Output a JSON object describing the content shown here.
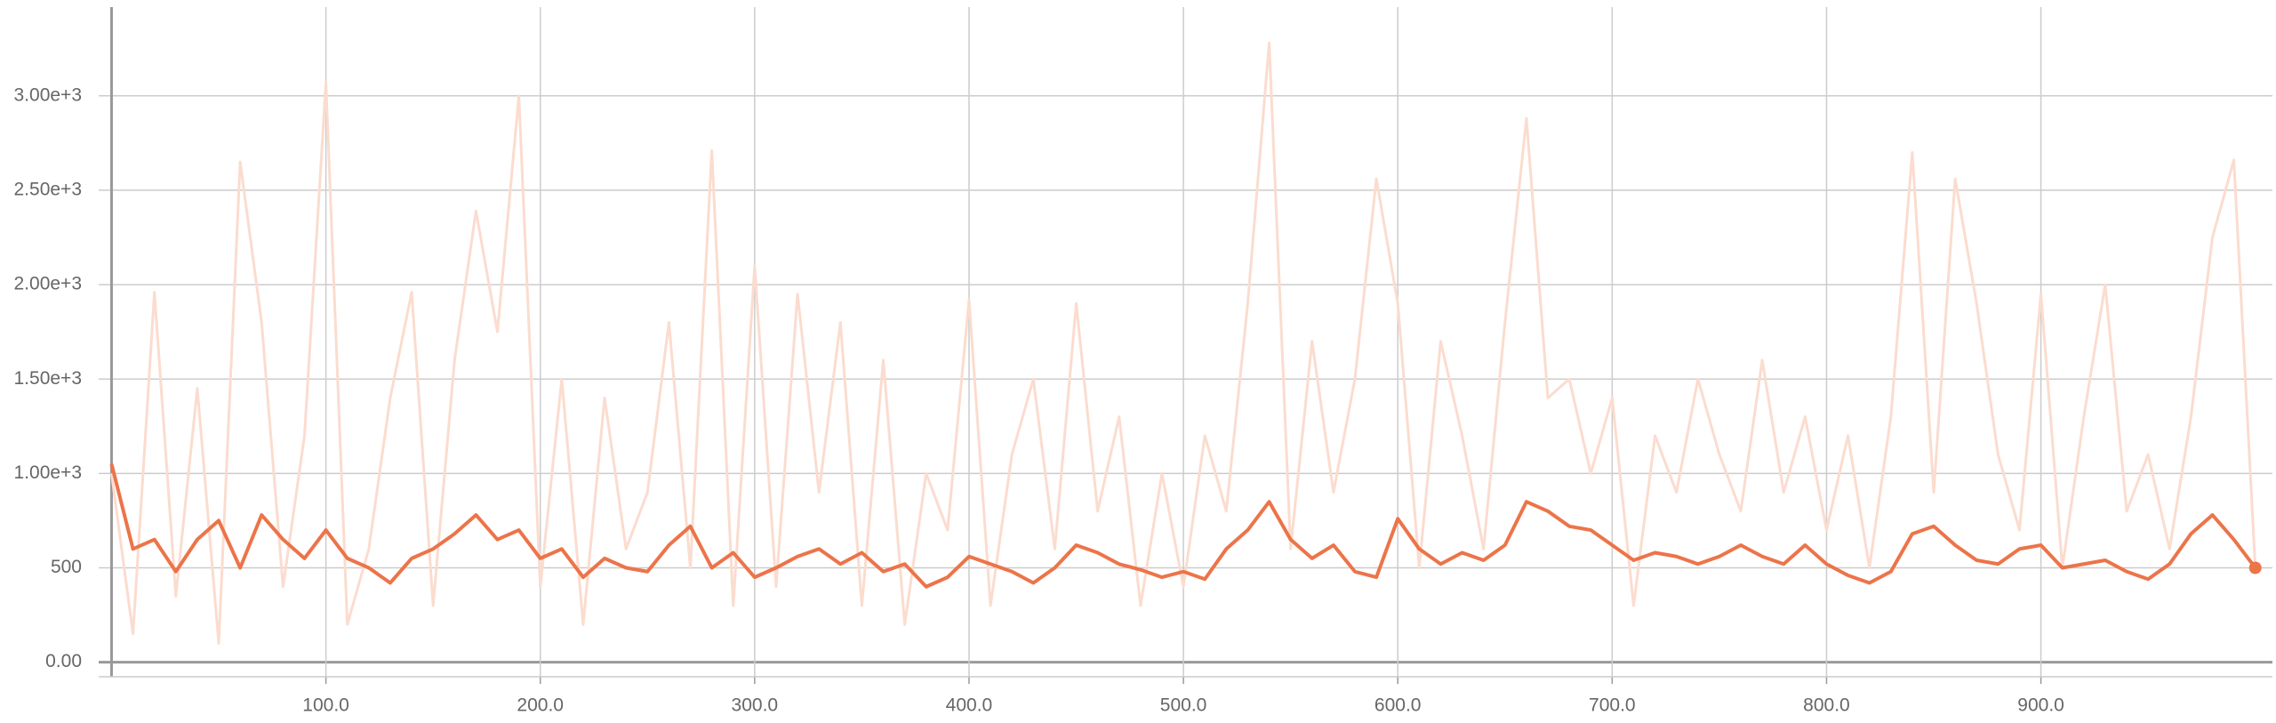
{
  "chart_data": {
    "type": "line",
    "x": [
      0,
      10,
      20,
      30,
      40,
      50,
      60,
      70,
      80,
      90,
      100,
      110,
      120,
      130,
      140,
      150,
      160,
      170,
      180,
      190,
      200,
      210,
      220,
      230,
      240,
      250,
      260,
      270,
      280,
      290,
      300,
      310,
      320,
      330,
      340,
      350,
      360,
      370,
      380,
      390,
      400,
      410,
      420,
      430,
      440,
      450,
      460,
      470,
      480,
      490,
      500,
      510,
      520,
      530,
      540,
      550,
      560,
      570,
      580,
      590,
      600,
      610,
      620,
      630,
      640,
      650,
      660,
      670,
      680,
      690,
      700,
      710,
      720,
      730,
      740,
      750,
      760,
      770,
      780,
      790,
      800,
      810,
      820,
      830,
      840,
      850,
      860,
      870,
      880,
      890,
      900,
      910,
      920,
      930,
      940,
      950,
      960,
      970,
      980,
      990,
      1000
    ],
    "series": [
      {
        "color": "#fbdccf",
        "values": [
          1000,
          150,
          1960,
          350,
          1450,
          100,
          2650,
          1800,
          400,
          1200,
          3070,
          200,
          600,
          1400,
          1960,
          300,
          1600,
          2390,
          1750,
          3000,
          400,
          1500,
          200,
          1400,
          600,
          900,
          1800,
          500,
          2710,
          300,
          2100,
          400,
          1950,
          900,
          1800,
          300,
          1600,
          200,
          1000,
          700,
          1920,
          300,
          1100,
          1500,
          600,
          1900,
          800,
          1300,
          300,
          1000,
          400,
          1200,
          800,
          1900,
          3280,
          600,
          1700,
          900,
          1500,
          2560,
          1900,
          500,
          1700,
          1200,
          600,
          1800,
          2880,
          1400,
          1500,
          1000,
          1400,
          300,
          1200,
          900,
          1500,
          1100,
          800,
          1600,
          900,
          1300,
          700,
          1200,
          500,
          1300,
          2700,
          900,
          2560,
          1900,
          1100,
          700,
          1950,
          500,
          1300,
          2000,
          800,
          1100,
          600,
          1300,
          2250,
          2660,
          500
        ]
      },
      {
        "color": "#ec7449",
        "values": [
          1050,
          600,
          650,
          480,
          650,
          750,
          500,
          780,
          650,
          550,
          700,
          550,
          500,
          420,
          550,
          600,
          680,
          780,
          650,
          700,
          550,
          600,
          450,
          550,
          500,
          480,
          620,
          720,
          500,
          580,
          450,
          500,
          560,
          600,
          520,
          580,
          480,
          520,
          400,
          450,
          560,
          520,
          480,
          420,
          500,
          620,
          580,
          520,
          490,
          450,
          480,
          440,
          600,
          700,
          850,
          650,
          550,
          620,
          480,
          450,
          760,
          600,
          520,
          580,
          540,
          620,
          850,
          800,
          720,
          700,
          620,
          540,
          580,
          560,
          520,
          560,
          620,
          560,
          520,
          620,
          520,
          460,
          420,
          480,
          680,
          720,
          620,
          540,
          520,
          600,
          620,
          500,
          520,
          540,
          480,
          440,
          520,
          680,
          780,
          650,
          500
        ]
      }
    ],
    "xlim": [
      -6,
      1008
    ],
    "ylim": [
      -77,
      3470
    ],
    "xticks": [
      {
        "value": 100,
        "label": "100.0"
      },
      {
        "value": 200,
        "label": "200.0"
      },
      {
        "value": 300,
        "label": "300.0"
      },
      {
        "value": 400,
        "label": "400.0"
      },
      {
        "value": 500,
        "label": "500.0"
      },
      {
        "value": 600,
        "label": "600.0"
      },
      {
        "value": 700,
        "label": "700.0"
      },
      {
        "value": 800,
        "label": "800.0"
      },
      {
        "value": 900,
        "label": "900.0"
      }
    ],
    "yticks": [
      {
        "value": 0,
        "label": "0.00"
      },
      500,
      {
        "value": 1000,
        "label": "1.00e+3"
      },
      {
        "value": 1500,
        "label": "1.50e+3"
      },
      {
        "value": 2000,
        "label": "2.00e+3"
      },
      {
        "value": 2500,
        "label": "2.50e+3"
      },
      {
        "value": 3000,
        "label": "3.00e+3"
      }
    ],
    "grid": true
  }
}
